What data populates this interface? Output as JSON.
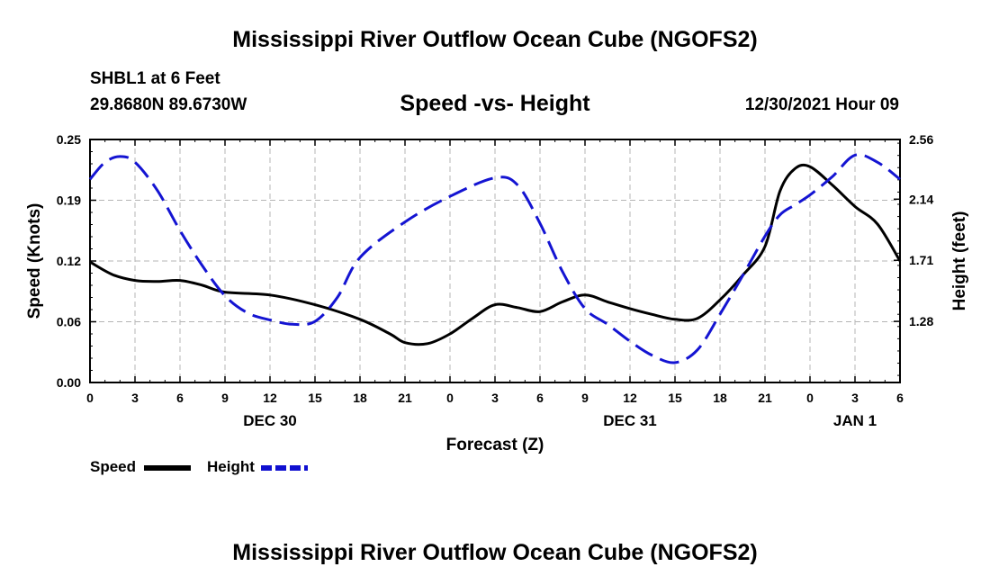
{
  "header": {
    "title": "Mississippi River Outflow Ocean Cube (NGOFS2)",
    "station": "SHBL1 at 6 Feet",
    "coords": "29.8680N  89.6730W",
    "subtitle": "Speed -vs- Height",
    "datetime": "12/30/2021 Hour 09"
  },
  "footer": {
    "title": "Mississippi River Outflow Ocean Cube (NGOFS2)"
  },
  "legend": {
    "speed_label": "Speed",
    "height_label": "Height"
  },
  "colors": {
    "speed": "#000000",
    "height": "#1414d2",
    "grid": "#b4b4b4"
  },
  "chart_data": {
    "type": "line",
    "title": "Speed -vs- Height",
    "xlabel": "Forecast (Z)",
    "ylabel": "Speed (Knots)",
    "ylabel_right": "Height (feet)",
    "x_range_hours": [
      0,
      54
    ],
    "x_tick_labels": [
      "0",
      "3",
      "6",
      "9",
      "12",
      "15",
      "18",
      "21",
      "0",
      "3",
      "6",
      "9",
      "12",
      "15",
      "18",
      "21",
      "0",
      "3",
      "6"
    ],
    "date_labels": [
      {
        "hour": 12,
        "label": "DEC 30"
      },
      {
        "hour": 36,
        "label": "DEC 31"
      },
      {
        "hour": 51,
        "label": "JAN 1"
      }
    ],
    "left_axis": {
      "range": [
        0,
        0.25
      ],
      "ticks": [
        "0.00",
        "0.06",
        "0.12",
        "0.19",
        "0.25"
      ],
      "tick_values": [
        0,
        0.0625,
        0.125,
        0.1875,
        0.25
      ]
    },
    "right_axis": {
      "range": [
        0.85,
        2.56
      ],
      "ticks": [
        "1.28",
        "1.71",
        "2.14",
        "2.56"
      ],
      "tick_values": [
        1.28,
        1.71,
        2.14,
        2.56
      ]
    },
    "series": [
      {
        "name": "Speed",
        "axis": "left",
        "style": "solid",
        "x": [
          0,
          1.5,
          3,
          4.5,
          6,
          7.5,
          9,
          12,
          15,
          18,
          20,
          21,
          22.5,
          24,
          25.5,
          27,
          28.5,
          30,
          31.5,
          33,
          34.5,
          36,
          37.5,
          39,
          40.5,
          42,
          43.5,
          45,
          46,
          47,
          48,
          49.5,
          51,
          52.5,
          54
        ],
        "values": [
          0.124,
          0.111,
          0.105,
          0.104,
          0.105,
          0.1,
          0.093,
          0.09,
          0.08,
          0.065,
          0.05,
          0.041,
          0.04,
          0.05,
          0.066,
          0.08,
          0.077,
          0.073,
          0.083,
          0.09,
          0.083,
          0.076,
          0.07,
          0.065,
          0.066,
          0.085,
          0.11,
          0.14,
          0.197,
          0.22,
          0.222,
          0.203,
          0.181,
          0.163,
          0.125
        ]
      },
      {
        "name": "Height",
        "axis": "right",
        "style": "dashed",
        "x": [
          0,
          1,
          2,
          3,
          4.5,
          6,
          7.5,
          9,
          10.5,
          12,
          13.5,
          15,
          16.5,
          18,
          21,
          24,
          27,
          28.5,
          30,
          31.5,
          33,
          34.5,
          36,
          37.5,
          39,
          40.5,
          42,
          43.5,
          45,
          46,
          47,
          48,
          49.5,
          51,
          52.5,
          54
        ],
        "values": [
          2.28,
          2.4,
          2.44,
          2.4,
          2.2,
          1.92,
          1.67,
          1.46,
          1.34,
          1.29,
          1.26,
          1.28,
          1.45,
          1.73,
          1.98,
          2.16,
          2.29,
          2.24,
          1.97,
          1.63,
          1.37,
          1.26,
          1.14,
          1.04,
          0.99,
          1.08,
          1.33,
          1.6,
          1.88,
          2.03,
          2.1,
          2.17,
          2.3,
          2.45,
          2.4,
          2.28
        ]
      }
    ]
  }
}
